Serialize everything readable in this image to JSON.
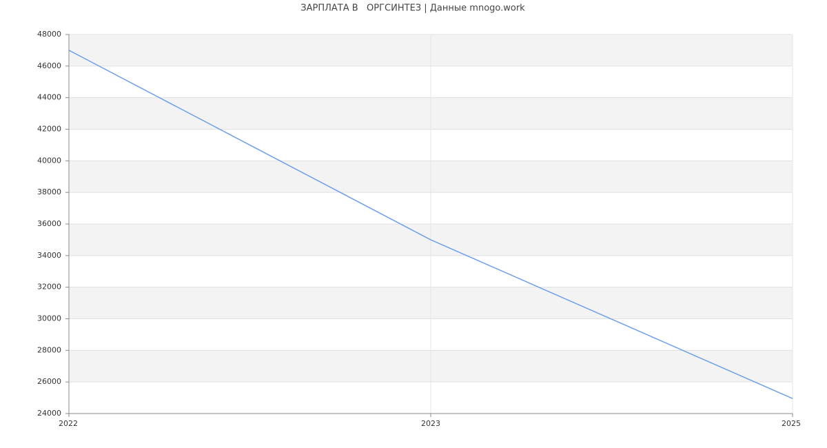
{
  "chart_data": {
    "type": "line",
    "title": "ЗАРПЛАТА В   ОРГСИНТЕЗ | Данные mnogo.work",
    "categories": [
      "2022",
      "2023",
      "2025"
    ],
    "values": [
      47000,
      35000,
      24950
    ],
    "color": "#6d9eeb",
    "ylim": [
      24000,
      48000
    ],
    "yticks": [
      24000,
      26000,
      28000,
      30000,
      32000,
      34000,
      36000,
      38000,
      40000,
      42000,
      44000,
      46000,
      48000
    ],
    "grid": true
  }
}
